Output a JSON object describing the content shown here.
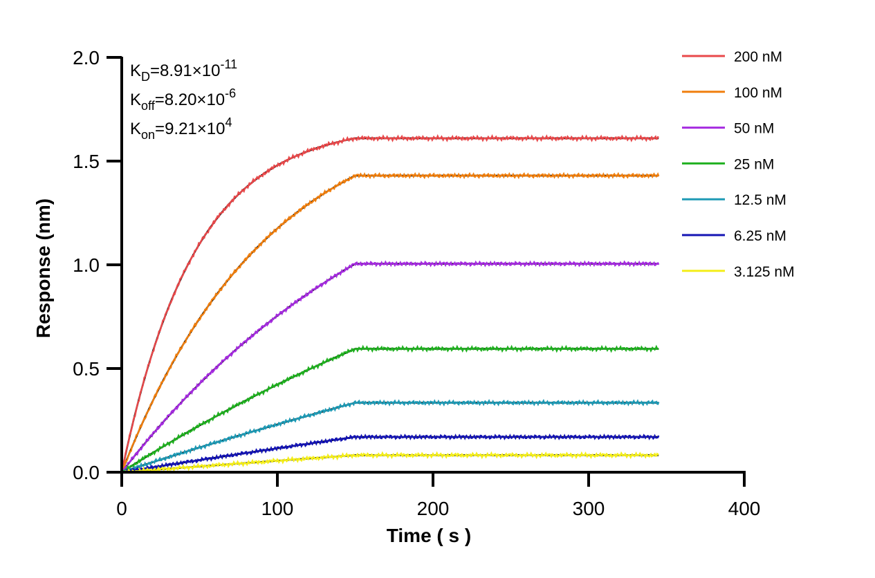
{
  "chart_data": {
    "type": "line",
    "title": "",
    "xlabel": "Time ( s )",
    "ylabel": "Response (nm)",
    "xlim": [
      0,
      400
    ],
    "ylim": [
      0,
      2.0
    ],
    "x_ticks": [
      "0",
      "100",
      "200",
      "300",
      "400"
    ],
    "y_ticks": [
      "0.0",
      "0.5",
      "1.0",
      "1.5",
      "2.0"
    ],
    "grid": false,
    "legend_position": "top-right",
    "association_end_s": 150,
    "end_time_s": 345,
    "annotations": [
      {
        "main": "K",
        "sub": "D",
        "value": "=8.91×10",
        "exp": "-11"
      },
      {
        "main": "K",
        "sub": "off",
        "value": "=8.20×10",
        "exp": "-6"
      },
      {
        "main": "K",
        "sub": "on",
        "value": "=9.21×10",
        "exp": "4"
      }
    ],
    "fit_line_color": "#000000",
    "series": [
      {
        "name": "200 nM",
        "color": "#e8484a",
        "plateau": 1.61,
        "curvature": 3.2
      },
      {
        "name": "100 nM",
        "color": "#f07f0e",
        "plateau": 1.43,
        "curvature": 1.6
      },
      {
        "name": "50 nM",
        "color": "#a52be0",
        "plateau": 1.005,
        "curvature": 0.8
      },
      {
        "name": "25 nM",
        "color": "#1fb01f",
        "plateau": 0.595,
        "curvature": 0.4
      },
      {
        "name": "12.5 nM",
        "color": "#1e9ab5",
        "plateau": 0.335,
        "curvature": 0.2
      },
      {
        "name": "6.25 nM",
        "color": "#1414b4",
        "plateau": 0.17,
        "curvature": 0.1
      },
      {
        "name": "3.125 nM",
        "color": "#f4ee1a",
        "plateau": 0.082,
        "curvature": 0.05
      }
    ]
  }
}
